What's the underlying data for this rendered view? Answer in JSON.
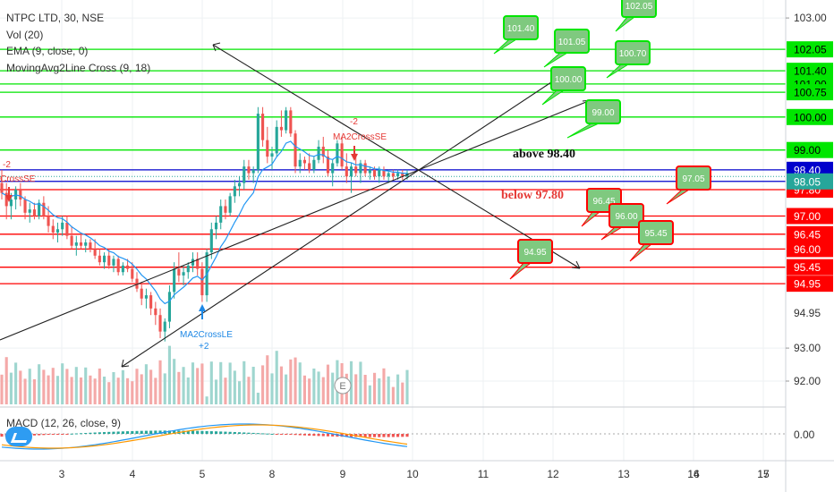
{
  "legend": {
    "title": "NTPC LTD, 30, NSE",
    "vol": "Vol (20)",
    "ema": "EMA (9, close, 0)",
    "mac": "MovingAvg2Line Cross (9, 18)"
  },
  "macd_legend": "MACD (12, 26, close, 9)",
  "colors": {
    "up": "#26a69a",
    "down": "#ef5350",
    "green": "#00e600",
    "red": "#ff0000",
    "blue": "#0000cc",
    "ema": "#2196f3",
    "signal": "#ff9800"
  },
  "chart_data": {
    "type": "candlestick",
    "x_ticks": [
      "3",
      "4",
      "5",
      "8",
      "9",
      "10",
      "11",
      "12",
      "13",
      "14",
      "15",
      "16",
      "17"
    ],
    "y_ticks": [
      "103.00",
      "93.00",
      "92.00"
    ],
    "macd_ticks": [
      "0.00"
    ],
    "ylim": [
      91.5,
      103.2
    ],
    "green_levels": [
      {
        "value": 102.05,
        "label": "102.05"
      },
      {
        "value": 101.4,
        "label": "101.40"
      },
      {
        "value": 101.0,
        "label": "101.00"
      },
      {
        "value": 100.75,
        "label": "100.75"
      },
      {
        "value": 100.0,
        "label": "100.00"
      },
      {
        "value": 99.0,
        "label": "99.00"
      }
    ],
    "blue_levels": [
      {
        "value": 98.4,
        "label": "98.40"
      },
      {
        "value": 98.05,
        "label": "98.05"
      }
    ],
    "red_levels": [
      {
        "value": 97.8,
        "label": "97.80"
      },
      {
        "value": 97.0,
        "label": "97.00"
      },
      {
        "value": 96.45,
        "label": "96.45"
      },
      {
        "value": 96.0,
        "label": "96.00"
      },
      {
        "value": 95.45,
        "label": "95.45"
      },
      {
        "value": 94.95,
        "label": "94.95"
      }
    ],
    "partial_tick": "94.95",
    "green_callouts": [
      "101.40",
      "101.05",
      "102.05",
      "100.70",
      "100.00",
      "99.00"
    ],
    "red_callouts": [
      "97.05",
      "96.45",
      "96.00",
      "95.45",
      "94.95"
    ],
    "annotations": {
      "above": "above 98.40",
      "below": "below 97.80",
      "ma_cross_le": "MA2CrossLE",
      "ma_cross_le_n": "+2",
      "ma_cross_se": "MA2CrossSE",
      "ma_cross_se_n": "-2",
      "ma_cross_se_left": "CrossSE",
      "ma_cross_se_left_n": "-2",
      "earnings": "E"
    },
    "candles": [
      [
        98.0,
        98.4,
        97.5,
        97.7
      ],
      [
        97.7,
        98.0,
        96.9,
        97.3
      ],
      [
        97.3,
        97.7,
        96.9,
        97.5
      ],
      [
        97.5,
        97.9,
        97.2,
        97.8
      ],
      [
        97.8,
        98.0,
        97.3,
        97.5
      ],
      [
        97.5,
        97.6,
        96.9,
        97.1
      ],
      [
        97.1,
        97.4,
        96.8,
        97.2
      ],
      [
        97.2,
        97.4,
        96.9,
        97.0
      ],
      [
        97.0,
        97.5,
        96.9,
        97.4
      ],
      [
        97.4,
        97.6,
        96.9,
        97.0
      ],
      [
        97.0,
        97.3,
        96.5,
        96.7
      ],
      [
        96.7,
        96.9,
        96.3,
        96.5
      ],
      [
        96.5,
        96.8,
        96.2,
        96.6
      ],
      [
        96.6,
        97.0,
        96.4,
        96.8
      ],
      [
        96.8,
        97.0,
        96.3,
        96.4
      ],
      [
        96.4,
        96.7,
        96.0,
        96.1
      ],
      [
        96.1,
        96.4,
        95.8,
        96.2
      ],
      [
        96.2,
        96.5,
        96.0,
        96.1
      ],
      [
        96.1,
        96.3,
        95.9,
        96.2
      ],
      [
        96.2,
        96.3,
        95.9,
        96.0
      ],
      [
        96.0,
        96.3,
        95.7,
        95.8
      ],
      [
        95.8,
        96.0,
        95.5,
        95.6
      ],
      [
        95.6,
        95.9,
        95.4,
        95.8
      ],
      [
        95.8,
        96.0,
        95.4,
        95.5
      ],
      [
        95.5,
        95.8,
        95.3,
        95.7
      ],
      [
        95.7,
        95.8,
        95.2,
        95.3
      ],
      [
        95.3,
        95.6,
        95.2,
        95.5
      ],
      [
        95.5,
        95.7,
        95.3,
        95.4
      ],
      [
        95.4,
        95.6,
        95.0,
        95.1
      ],
      [
        95.1,
        95.3,
        94.7,
        94.8
      ],
      [
        94.8,
        95.0,
        94.3,
        94.5
      ],
      [
        94.5,
        94.8,
        94.2,
        94.6
      ],
      [
        94.6,
        94.7,
        94.0,
        94.2
      ],
      [
        94.2,
        94.4,
        93.7,
        94.0
      ],
      [
        94.0,
        94.2,
        93.3,
        93.5
      ],
      [
        93.5,
        93.9,
        93.2,
        93.8
      ],
      [
        93.8,
        94.9,
        93.6,
        94.7
      ],
      [
        94.7,
        95.6,
        94.5,
        95.4
      ],
      [
        95.4,
        95.9,
        95.0,
        95.2
      ],
      [
        95.2,
        95.5,
        94.9,
        95.3
      ],
      [
        95.3,
        95.6,
        95.1,
        95.5
      ],
      [
        95.5,
        95.9,
        95.3,
        95.7
      ],
      [
        95.7,
        95.9,
        95.2,
        95.4
      ],
      [
        95.4,
        95.6,
        94.4,
        94.6
      ],
      [
        94.6,
        96.0,
        94.4,
        95.9
      ],
      [
        95.9,
        96.8,
        95.7,
        96.6
      ],
      [
        96.6,
        97.0,
        96.3,
        96.8
      ],
      [
        96.8,
        97.5,
        96.6,
        97.3
      ],
      [
        97.3,
        97.5,
        96.9,
        97.1
      ],
      [
        97.1,
        97.7,
        97.0,
        97.6
      ],
      [
        97.6,
        98.1,
        97.4,
        97.9
      ],
      [
        97.9,
        98.2,
        97.6,
        98.0
      ],
      [
        98.0,
        98.7,
        97.8,
        98.5
      ],
      [
        98.5,
        98.7,
        98.1,
        98.3
      ],
      [
        98.3,
        98.5,
        98.0,
        98.4
      ],
      [
        98.4,
        100.3,
        98.3,
        100.1
      ],
      [
        100.1,
        100.3,
        99.1,
        99.3
      ],
      [
        99.3,
        99.7,
        98.6,
        98.8
      ],
      [
        98.8,
        99.1,
        98.4,
        98.9
      ],
      [
        98.9,
        99.9,
        98.8,
        99.7
      ],
      [
        99.7,
        100.2,
        99.4,
        99.6
      ],
      [
        99.6,
        100.3,
        99.5,
        100.2
      ],
      [
        100.2,
        100.3,
        99.4,
        99.5
      ],
      [
        99.5,
        99.6,
        98.3,
        98.5
      ],
      [
        98.5,
        98.9,
        98.3,
        98.7
      ],
      [
        98.7,
        98.8,
        98.4,
        98.6
      ],
      [
        98.6,
        98.9,
        98.3,
        98.4
      ],
      [
        98.4,
        98.8,
        98.3,
        98.7
      ],
      [
        98.7,
        99.3,
        98.6,
        99.1
      ],
      [
        99.1,
        99.4,
        98.6,
        98.8
      ],
      [
        98.8,
        99.0,
        98.2,
        98.3
      ],
      [
        98.3,
        98.7,
        97.9,
        98.6
      ],
      [
        98.6,
        99.3,
        98.5,
        99.2
      ],
      [
        99.2,
        99.4,
        98.4,
        98.5
      ],
      [
        98.5,
        98.9,
        98.0,
        98.2
      ],
      [
        98.2,
        98.6,
        97.7,
        98.5
      ],
      [
        98.5,
        98.9,
        98.2,
        98.3
      ],
      [
        98.3,
        98.7,
        98.0,
        98.6
      ],
      [
        98.6,
        98.7,
        98.2,
        98.3
      ],
      [
        98.3,
        98.5,
        98.1,
        98.4
      ],
      [
        98.4,
        98.5,
        98.1,
        98.2
      ],
      [
        98.2,
        98.5,
        98.0,
        98.4
      ],
      [
        98.4,
        98.5,
        98.1,
        98.2
      ],
      [
        98.2,
        98.4,
        98.0,
        98.3
      ],
      [
        98.3,
        98.4,
        98.1,
        98.2
      ],
      [
        98.2,
        98.4,
        98.1,
        98.3
      ],
      [
        98.3,
        98.4,
        98.1,
        98.2
      ],
      [
        98.2,
        98.4,
        98.1,
        98.3
      ]
    ]
  }
}
